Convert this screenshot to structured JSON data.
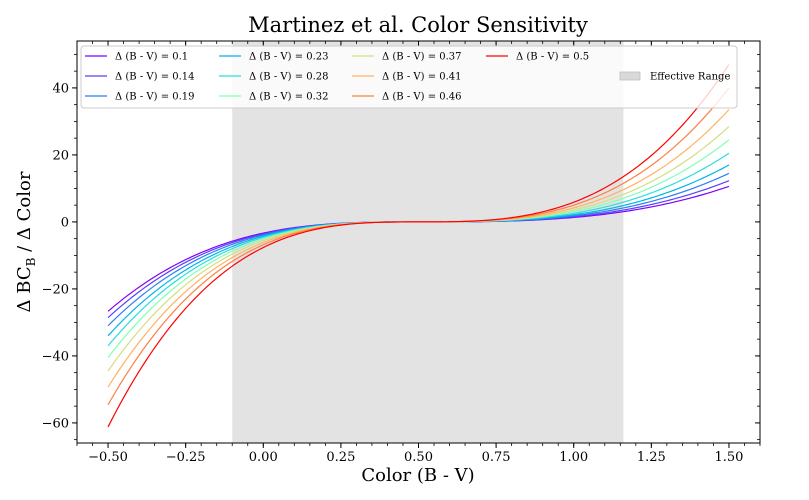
{
  "chart_data": {
    "type": "line",
    "title": "Martinez et al. Color Sensitivity",
    "xlabel": "Color (B - V)",
    "ylabel_parts": {
      "pre": "Δ BC",
      "sub": "B",
      "post": " / Δ Color"
    },
    "xlim": [
      -0.6,
      1.6
    ],
    "ylim": [
      -66,
      54
    ],
    "xticks": [
      -0.5,
      -0.25,
      0.0,
      0.25,
      0.5,
      0.75,
      1.0,
      1.25,
      1.5
    ],
    "xtick_labels": [
      "−0.50",
      "−0.25",
      "0.00",
      "0.25",
      "0.50",
      "0.75",
      "1.00",
      "1.25",
      "1.50"
    ],
    "yticks": [
      -60,
      -40,
      -20,
      0,
      20,
      40
    ],
    "ytick_labels": [
      "−60",
      "−40",
      "−20",
      "0",
      "20",
      "40"
    ],
    "grid": false,
    "legend_position": "top",
    "effective_range": {
      "x0": -0.1,
      "x1": 1.16,
      "label": "Effective Range",
      "color": "#d9d9d9"
    },
    "series_x_range": [
      -0.5,
      1.5
    ],
    "series": [
      {
        "name": "Δ (B - V) = 0.1",
        "color": "#8000ff",
        "y_at_x_min": -26.7,
        "y_at_x_max": 10.6
      },
      {
        "name": "Δ (B - V) = 0.14",
        "color": "#5641fd",
        "y_at_x_min": -28.6,
        "y_at_x_max": 12.3
      },
      {
        "name": "Δ (B - V) = 0.19",
        "color": "#2c7ef7",
        "y_at_x_min": -31.0,
        "y_at_x_max": 14.5
      },
      {
        "name": "Δ (B - V) = 0.23",
        "color": "#00b5eb",
        "y_at_x_min": -34.0,
        "y_at_x_max": 17.0
      },
      {
        "name": "Δ (B - V) = 0.28",
        "color": "#2adddd",
        "y_at_x_min": -37.0,
        "y_at_x_max": 20.5
      },
      {
        "name": "Δ (B - V) = 0.32",
        "color": "#80ffb4",
        "y_at_x_min": -40.5,
        "y_at_x_max": 24.5
      },
      {
        "name": "Δ (B - V) = 0.37",
        "color": "#d4dd80",
        "y_at_x_min": -44.5,
        "y_at_x_max": 28.5
      },
      {
        "name": "Δ (B - V) = 0.41",
        "color": "#ffb360",
        "y_at_x_min": -49.3,
        "y_at_x_max": 33.5
      },
      {
        "name": "Δ (B - V) = 0.46",
        "color": "#ff7e41",
        "y_at_x_min": -54.6,
        "y_at_x_max": 40.0
      },
      {
        "name": "Δ (B - V) = 0.5",
        "color": "#ff0000",
        "y_at_x_min": -61.2,
        "y_at_x_max": 47.0
      }
    ]
  }
}
